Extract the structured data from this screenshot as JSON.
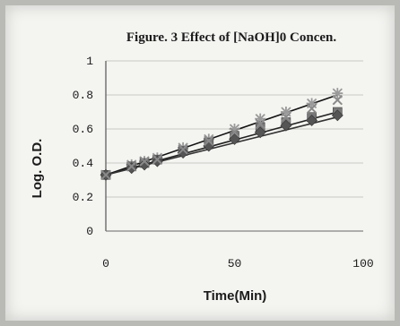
{
  "chart_data": {
    "type": "line",
    "title": "Figure. 3  Effect of [NaOH]0 Concen.",
    "xlabel": "Time(Min)",
    "ylabel": "Log. O.D.",
    "xlim": [
      0,
      100
    ],
    "ylim": [
      0,
      1
    ],
    "x_ticks": [
      "0",
      "50",
      "100"
    ],
    "y_ticks": [
      "0",
      "0.2",
      "0.4",
      "0.6",
      "0.8",
      "1"
    ],
    "grid": "horizontal",
    "legend": "none",
    "series": [
      {
        "marker": "star",
        "color": "#9a9a9a",
        "x": [
          0,
          10,
          15,
          20,
          30,
          40,
          50,
          60,
          70,
          80,
          90
        ],
        "y": [
          0.33,
          0.39,
          0.41,
          0.43,
          0.49,
          0.54,
          0.6,
          0.66,
          0.7,
          0.75,
          0.81
        ]
      },
      {
        "marker": "square",
        "color": "#787878",
        "x": [
          0,
          10,
          15,
          20,
          30,
          40,
          50,
          60,
          70,
          80,
          90
        ],
        "y": [
          0.33,
          0.38,
          0.4,
          0.42,
          0.47,
          0.52,
          0.56,
          0.61,
          0.64,
          0.67,
          0.7
        ]
      },
      {
        "marker": "diamond",
        "color": "#555555",
        "x": [
          0,
          10,
          15,
          20,
          30,
          40,
          50,
          60,
          70,
          80,
          90
        ],
        "y": [
          0.33,
          0.37,
          0.39,
          0.41,
          0.46,
          0.5,
          0.54,
          0.58,
          0.62,
          0.65,
          0.68
        ]
      },
      {
        "marker": "cross",
        "color": "#8a8a8a",
        "x": [
          0,
          10,
          15,
          20,
          30,
          40,
          50,
          60,
          70,
          80,
          90
        ],
        "y": [
          0.33,
          0.38,
          0.41,
          0.42,
          0.48,
          0.53,
          0.58,
          0.63,
          0.67,
          0.72,
          0.77
        ]
      }
    ],
    "trendlines": [
      {
        "color": "#111111",
        "x": [
          0,
          90
        ],
        "y": [
          0.33,
          0.8
        ]
      },
      {
        "color": "#222222",
        "x": [
          0,
          90
        ],
        "y": [
          0.33,
          0.7
        ]
      },
      {
        "color": "#333333",
        "x": [
          0,
          90
        ],
        "y": [
          0.33,
          0.67
        ]
      }
    ]
  }
}
